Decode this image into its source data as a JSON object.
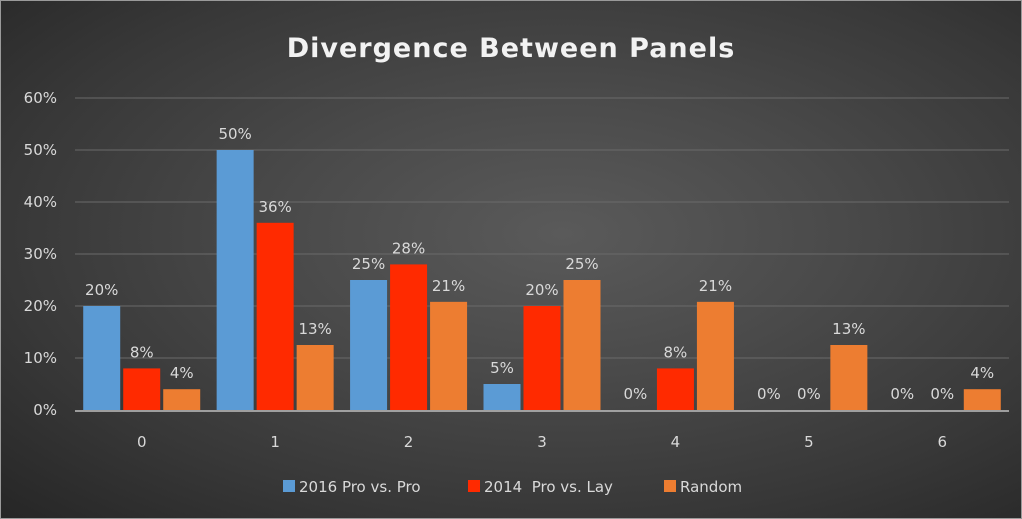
{
  "chart_data": {
    "type": "bar",
    "title": "Divergence Between Panels",
    "xlabel": "",
    "ylabel": "",
    "categories": [
      "0",
      "1",
      "2",
      "3",
      "4",
      "5",
      "6"
    ],
    "series": [
      {
        "name": "2016 Pro vs. Pro",
        "color": "#5b9bd5",
        "values": [
          20,
          50,
          25,
          5,
          0,
          0,
          0
        ],
        "labels": [
          "20%",
          "50%",
          "25%",
          "5%",
          "0%",
          "0%",
          "0%"
        ]
      },
      {
        "name": "2014  Pro vs. Lay",
        "color": "#ff2a00",
        "values": [
          8,
          36,
          28,
          20,
          8,
          0,
          0
        ],
        "labels": [
          "8%",
          "36%",
          "28%",
          "20%",
          "8%",
          "0%",
          "0%"
        ]
      },
      {
        "name": "Random",
        "color": "#ed7d31",
        "values": [
          4,
          12.5,
          20.8,
          25,
          20.8,
          12.5,
          4
        ],
        "labels": [
          "4%",
          "13%",
          "21%",
          "25%",
          "21%",
          "13%",
          "4%"
        ]
      }
    ],
    "ylim": [
      0,
      60
    ],
    "yticks": [
      0,
      10,
      20,
      30,
      40,
      50,
      60
    ],
    "ytick_labels": [
      "0%",
      "10%",
      "20%",
      "30%",
      "40%",
      "50%",
      "60%"
    ],
    "grid": true,
    "legend": "bottom-center"
  }
}
